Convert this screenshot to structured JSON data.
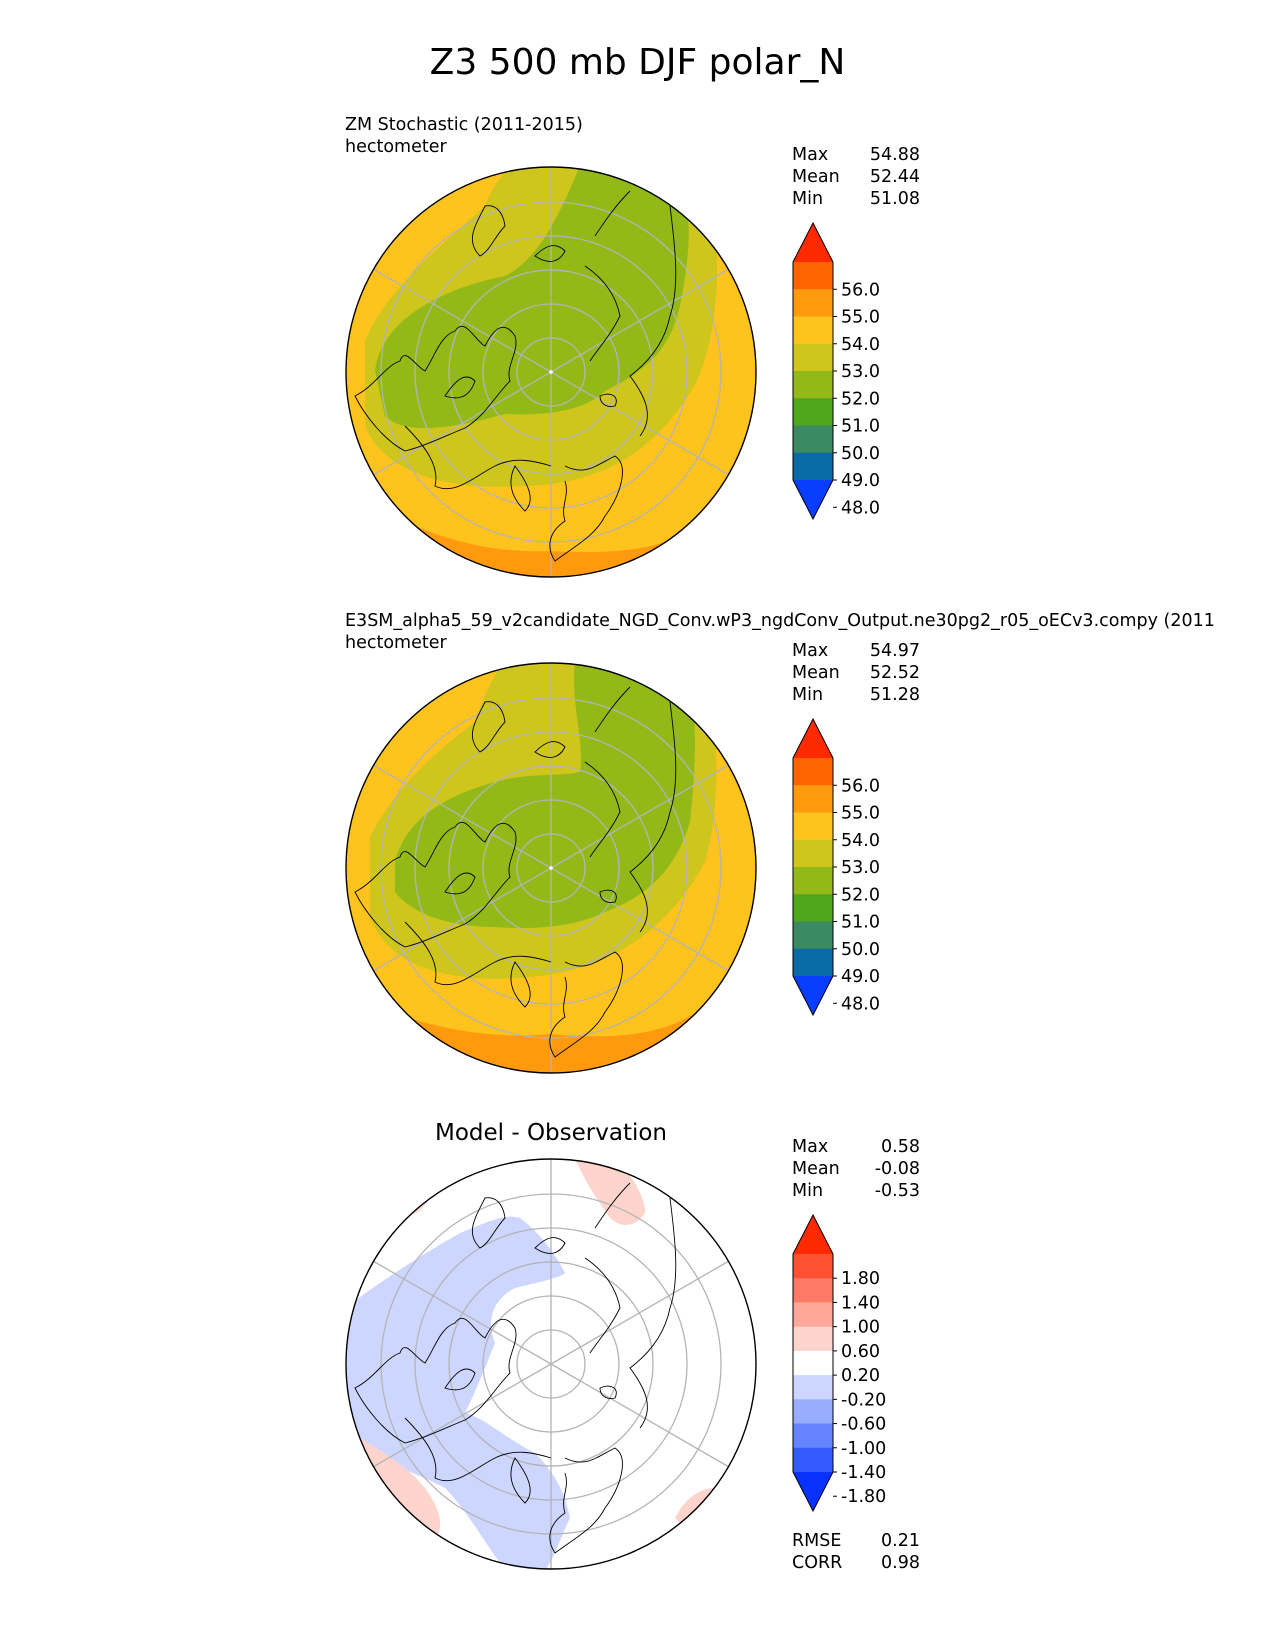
{
  "figure": {
    "title": "Z3 500 mb DJF polar_N"
  },
  "panels": [
    {
      "title_line1": "ZM Stochastic (2011-2015)",
      "title_line2": "hectometer",
      "stats": [
        [
          "Max",
          "54.88"
        ],
        [
          "Mean",
          "52.44"
        ],
        [
          "Min",
          "51.08"
        ]
      ],
      "colorbar": {
        "ticks": [
          "56.0",
          "55.0",
          "54.0",
          "53.0",
          "52.0",
          "51.0",
          "50.0",
          "49.0",
          "48.0"
        ],
        "colors": [
          "#ff2a00",
          "#ff6400",
          "#ff9a0f",
          "#ffc31e",
          "#cfc61d",
          "#93b918",
          "#4ea81a",
          "#3a8a63",
          "#0a6aa5",
          "#0a3eff"
        ]
      }
    },
    {
      "title_line1": "E3SM_alpha5_59_v2candidate_NGD_Conv.wP3_ngdConv_Output.ne30pg2_r05_oECv3.compy (2011",
      "title_line2": "hectometer",
      "stats": [
        [
          "Max",
          "54.97"
        ],
        [
          "Mean",
          "52.52"
        ],
        [
          "Min",
          "51.28"
        ]
      ],
      "colorbar": {
        "ticks": [
          "56.0",
          "55.0",
          "54.0",
          "53.0",
          "52.0",
          "51.0",
          "50.0",
          "49.0",
          "48.0"
        ],
        "colors": [
          "#ff2a00",
          "#ff6400",
          "#ff9a0f",
          "#ffc31e",
          "#cfc61d",
          "#93b918",
          "#4ea81a",
          "#3a8a63",
          "#0a6aa5",
          "#0a3eff"
        ]
      }
    },
    {
      "title": "Model - Observation",
      "stats": [
        [
          "Max",
          "0.58"
        ],
        [
          "Mean",
          "-0.08"
        ],
        [
          "Min",
          "-0.53"
        ]
      ],
      "colorbar": {
        "ticks": [
          "1.80",
          "1.40",
          "1.00",
          "0.60",
          "0.20",
          "-0.20",
          "-0.60",
          "-1.00",
          "-1.40",
          "-1.80"
        ],
        "colors": [
          "#ff2a00",
          "#ff5030",
          "#ff7a66",
          "#ffa899",
          "#ffd4cc",
          "#ffffff",
          "#ccd6ff",
          "#99adff",
          "#6684ff",
          "#335bff",
          "#0a32ff"
        ]
      },
      "metrics": [
        [
          "RMSE",
          "0.21"
        ],
        [
          "CORR",
          "0.98"
        ]
      ]
    }
  ]
}
